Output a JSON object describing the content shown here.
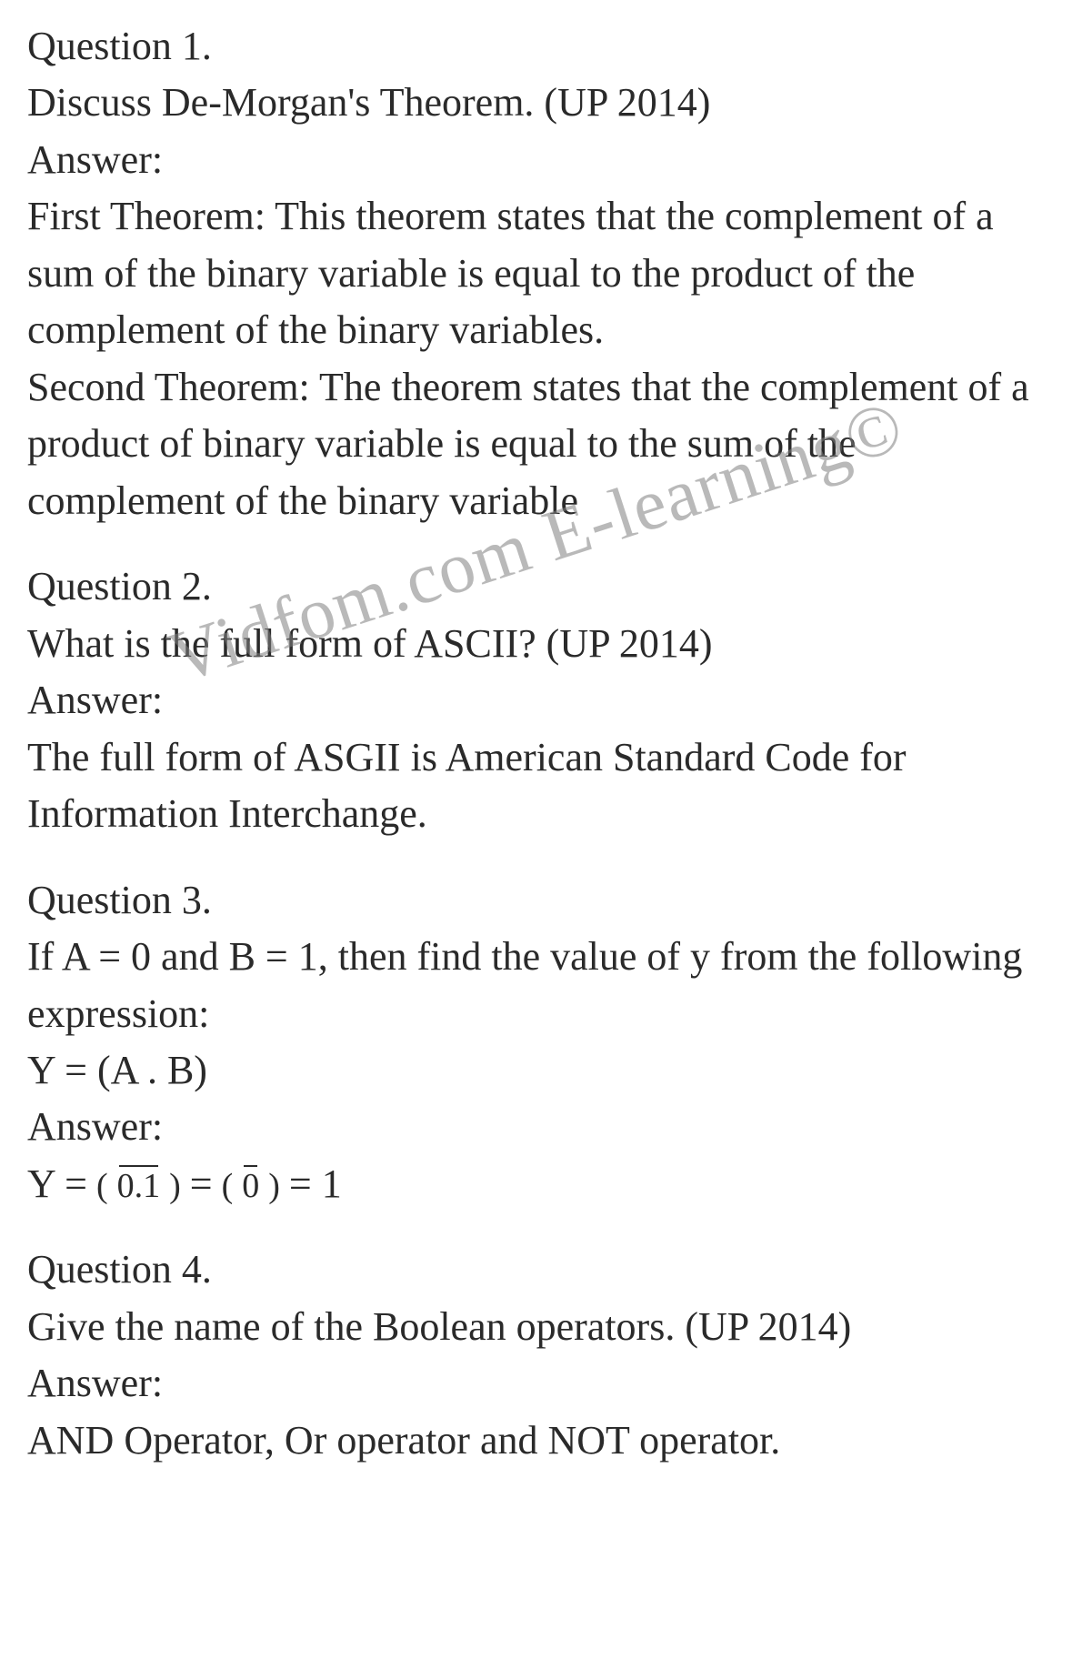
{
  "watermark": "Vidfom.com E-learning©",
  "q1": {
    "title": "Question 1.",
    "prompt": "Discuss De-Morgan's Theorem. (UP 2014)",
    "answer_label": "Answer:",
    "first": "First Theorem: This theorem states that the complement of a sum of the binary variable is equal to the product of the complement of the binary variables.",
    "second": "Second Theorem: The theorem states that the complement of a product of binary variable is equal to the sum of the complement of the binary variable"
  },
  "q2": {
    "title": "Question 2.",
    "prompt": "What is the full form of ASCII? (UP 2014)",
    "answer_label": "Answer:",
    "answer": "The full form of ASGII is American Standard Code for Information Interchange."
  },
  "q3": {
    "title": "Question 3.",
    "prompt": "If A = 0 and B = 1, then find the value of y from the following expression:",
    "expr": "Y = (A . B)",
    "answer_label": "Answer:",
    "eq_lead": "Y = ",
    "eq_p1": "(0.1)",
    "eq_mid": " = ",
    "eq_p2": "(0)",
    "eq_tail": " = 1"
  },
  "q4": {
    "title": "Question 4.",
    "prompt": "Give the name of the Boolean operators. (UP 2014)",
    "answer_label": "Answer:",
    "answer": "AND Operator, Or operator and NOT operator."
  }
}
